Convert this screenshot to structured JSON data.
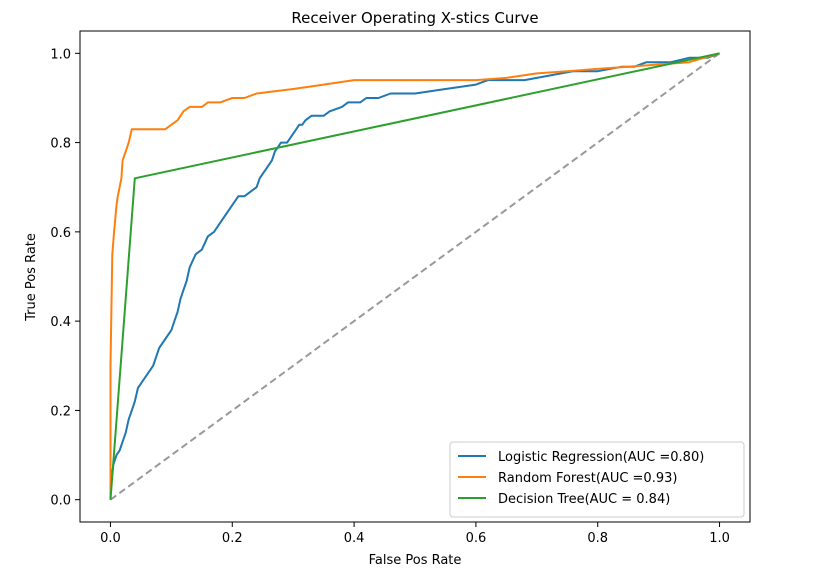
{
  "chart_data": {
    "type": "line",
    "title": "Receiver Operating X-stics Curve",
    "xlabel": "False Pos Rate",
    "ylabel": "True Pos Rate",
    "xlim": [
      -0.05,
      1.05
    ],
    "ylim": [
      -0.05,
      1.05
    ],
    "xticks": [
      "0.0",
      "0.2",
      "0.4",
      "0.6",
      "0.8",
      "1.0"
    ],
    "yticks": [
      "0.0",
      "0.2",
      "0.4",
      "0.6",
      "0.8",
      "1.0"
    ],
    "grid": false,
    "legend_position": "bottom-right",
    "series": [
      {
        "name": "Logistic Regression(AUC =0.80)",
        "color": "#1f77b4",
        "x": [
          0.0,
          0.0,
          0.005,
          0.01,
          0.015,
          0.02,
          0.025,
          0.03,
          0.035,
          0.04,
          0.045,
          0.05,
          0.06,
          0.07,
          0.08,
          0.09,
          0.1,
          0.105,
          0.11,
          0.115,
          0.12,
          0.125,
          0.13,
          0.14,
          0.15,
          0.16,
          0.17,
          0.18,
          0.19,
          0.2,
          0.21,
          0.22,
          0.23,
          0.24,
          0.245,
          0.25,
          0.255,
          0.26,
          0.265,
          0.27,
          0.275,
          0.28,
          0.285,
          0.29,
          0.3,
          0.31,
          0.315,
          0.32,
          0.33,
          0.34,
          0.35,
          0.36,
          0.38,
          0.39,
          0.4,
          0.41,
          0.42,
          0.44,
          0.46,
          0.5,
          0.55,
          0.6,
          0.62,
          0.68,
          0.72,
          0.76,
          0.8,
          0.84,
          0.86,
          0.88,
          0.9,
          0.92,
          0.95,
          0.98,
          1.0
        ],
        "y": [
          0.0,
          0.03,
          0.08,
          0.1,
          0.11,
          0.13,
          0.15,
          0.18,
          0.2,
          0.22,
          0.25,
          0.26,
          0.28,
          0.3,
          0.34,
          0.36,
          0.38,
          0.4,
          0.42,
          0.45,
          0.47,
          0.49,
          0.52,
          0.55,
          0.56,
          0.59,
          0.6,
          0.62,
          0.64,
          0.66,
          0.68,
          0.68,
          0.69,
          0.7,
          0.72,
          0.73,
          0.74,
          0.75,
          0.76,
          0.78,
          0.79,
          0.8,
          0.8,
          0.8,
          0.82,
          0.84,
          0.84,
          0.85,
          0.86,
          0.86,
          0.86,
          0.87,
          0.88,
          0.89,
          0.89,
          0.89,
          0.9,
          0.9,
          0.91,
          0.91,
          0.92,
          0.93,
          0.94,
          0.94,
          0.95,
          0.96,
          0.96,
          0.97,
          0.97,
          0.98,
          0.98,
          0.98,
          0.99,
          0.99,
          1.0
        ]
      },
      {
        "name": "Random Forest(AUC =0.93)",
        "color": "#ff7f0e",
        "x": [
          0.0,
          0.0,
          0.003,
          0.006,
          0.008,
          0.01,
          0.012,
          0.015,
          0.018,
          0.02,
          0.025,
          0.03,
          0.035,
          0.04,
          0.06,
          0.09,
          0.1,
          0.11,
          0.12,
          0.13,
          0.15,
          0.16,
          0.18,
          0.2,
          0.22,
          0.24,
          0.3,
          0.35,
          0.4,
          0.45,
          0.5,
          0.55,
          0.6,
          0.65,
          0.7,
          0.75,
          0.8,
          0.85,
          0.9,
          0.95,
          1.0
        ],
        "y": [
          0.0,
          0.3,
          0.55,
          0.6,
          0.63,
          0.66,
          0.68,
          0.7,
          0.72,
          0.76,
          0.78,
          0.8,
          0.83,
          0.83,
          0.83,
          0.83,
          0.84,
          0.85,
          0.87,
          0.88,
          0.88,
          0.89,
          0.89,
          0.9,
          0.9,
          0.91,
          0.92,
          0.93,
          0.94,
          0.94,
          0.94,
          0.94,
          0.94,
          0.945,
          0.955,
          0.96,
          0.965,
          0.97,
          0.975,
          0.98,
          1.0
        ]
      },
      {
        "name": "Decision Tree(AUC = 0.84)",
        "color": "#2ca02c",
        "x": [
          0.0,
          0.04,
          1.0
        ],
        "y": [
          0.0,
          0.72,
          1.0
        ]
      },
      {
        "name": "",
        "color": "#999999",
        "dashed": true,
        "x": [
          0.0,
          1.0
        ],
        "y": [
          0.0,
          1.0
        ]
      }
    ]
  }
}
